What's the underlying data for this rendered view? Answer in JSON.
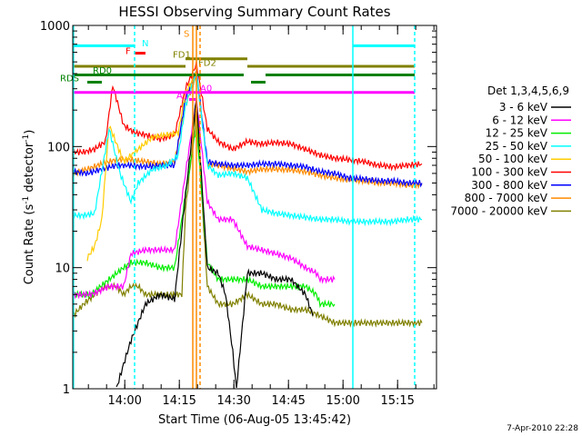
{
  "chart_data": {
    "type": "line",
    "title": "HESSI Observing Summary Count Rates",
    "xlabel": "Start Time (06-Aug-05 13:45:42)",
    "ylabel_main": "Count Rate (s",
    "ylabel_sup1": "-1",
    "ylabel_mid": " detector",
    "ylabel_sup2": "-1",
    "ylabel_end": ")",
    "y_scale": "log",
    "ylim": [
      1,
      1000
    ],
    "x_start_label": "13:45:42",
    "x_range_minutes": [
      0,
      100
    ],
    "y_ticks": [
      {
        "value": 1,
        "label": "1"
      },
      {
        "value": 10,
        "label": "10"
      },
      {
        "value": 100,
        "label": "100"
      },
      {
        "value": 1000,
        "label": "1000"
      }
    ],
    "x_ticks": [
      {
        "minute": 14.3,
        "label": "14:00"
      },
      {
        "minute": 29.3,
        "label": "14:15"
      },
      {
        "minute": 44.3,
        "label": "14:30"
      },
      {
        "minute": 59.3,
        "label": "14:45"
      },
      {
        "minute": 74.3,
        "label": "15:00"
      },
      {
        "minute": 89.3,
        "label": "15:15"
      }
    ],
    "legend_title": "Det 1,3,4,5,6,9",
    "legend_placement": "right",
    "series": [
      {
        "name": "3 - 6 keV",
        "color": "#000000",
        "points": [
          [
            12,
            1
          ],
          [
            14,
            1.6
          ],
          [
            16,
            2.5
          ],
          [
            20,
            5
          ],
          [
            24,
            6
          ],
          [
            28,
            5.5
          ],
          [
            31,
            40
          ],
          [
            34,
            250
          ],
          [
            37,
            10
          ],
          [
            40,
            9
          ],
          [
            42,
            6
          ],
          [
            44,
            2
          ],
          [
            45,
            1
          ],
          [
            48,
            9
          ],
          [
            52,
            9
          ],
          [
            56,
            8
          ],
          [
            60,
            8
          ],
          [
            64,
            6
          ],
          [
            66,
            4
          ]
        ]
      },
      {
        "name": "6 - 12 keV",
        "color": "#ff00ff",
        "points": [
          [
            0,
            6
          ],
          [
            5,
            6
          ],
          [
            10,
            7
          ],
          [
            14,
            7
          ],
          [
            16,
            13
          ],
          [
            20,
            14
          ],
          [
            24,
            14
          ],
          [
            28,
            14
          ],
          [
            31,
            60
          ],
          [
            34,
            250
          ],
          [
            37,
            35
          ],
          [
            40,
            25
          ],
          [
            44,
            25
          ],
          [
            48,
            15
          ],
          [
            52,
            14
          ],
          [
            56,
            13
          ],
          [
            60,
            12
          ],
          [
            64,
            10
          ],
          [
            67,
            9
          ],
          [
            68,
            8
          ],
          [
            72,
            8
          ]
        ]
      },
      {
        "name": "12 - 25 keV",
        "color": "#00ee00",
        "points": [
          [
            0,
            6
          ],
          [
            5,
            6
          ],
          [
            10,
            8
          ],
          [
            14,
            10
          ],
          [
            16,
            11
          ],
          [
            20,
            11
          ],
          [
            24,
            10
          ],
          [
            28,
            10
          ],
          [
            31,
            40
          ],
          [
            34,
            150
          ],
          [
            37,
            11
          ],
          [
            40,
            8
          ],
          [
            44,
            8
          ],
          [
            48,
            8
          ],
          [
            52,
            7
          ],
          [
            56,
            7
          ],
          [
            60,
            7
          ],
          [
            64,
            7
          ],
          [
            67,
            6
          ],
          [
            68,
            5
          ],
          [
            72,
            5
          ]
        ]
      },
      {
        "name": "25 - 50 keV",
        "color": "#00ffff",
        "points": [
          [
            0,
            27
          ],
          [
            3,
            27
          ],
          [
            6,
            28
          ],
          [
            10,
            140
          ],
          [
            13,
            60
          ],
          [
            16,
            35
          ],
          [
            18,
            50
          ],
          [
            22,
            65
          ],
          [
            26,
            70
          ],
          [
            29,
            85
          ],
          [
            31,
            220
          ],
          [
            34,
            400
          ],
          [
            37,
            70
          ],
          [
            40,
            58
          ],
          [
            44,
            60
          ],
          [
            48,
            55
          ],
          [
            52,
            30
          ],
          [
            56,
            28
          ],
          [
            60,
            27
          ],
          [
            64,
            26
          ],
          [
            68,
            25
          ],
          [
            72,
            25
          ],
          [
            76,
            24
          ],
          [
            80,
            24
          ],
          [
            84,
            24
          ],
          [
            88,
            24
          ],
          [
            92,
            25
          ],
          [
            96,
            25
          ]
        ]
      },
      {
        "name": "50 - 100 keV",
        "color": "#ffcc00",
        "points": [
          [
            4,
            12
          ],
          [
            6,
            15
          ],
          [
            8,
            25
          ],
          [
            10,
            150
          ],
          [
            14,
            75
          ],
          [
            18,
            95
          ],
          [
            22,
            120
          ],
          [
            26,
            125
          ],
          [
            29,
            130
          ],
          [
            31,
            280
          ],
          [
            34,
            400
          ]
        ]
      },
      {
        "name": "100 - 300 keV",
        "color": "#ff0000",
        "points": [
          [
            0,
            90
          ],
          [
            3,
            90
          ],
          [
            6,
            95
          ],
          [
            9,
            110
          ],
          [
            11,
            320
          ],
          [
            14,
            150
          ],
          [
            17,
            130
          ],
          [
            20,
            125
          ],
          [
            24,
            115
          ],
          [
            28,
            125
          ],
          [
            31,
            300
          ],
          [
            34,
            480
          ],
          [
            37,
            140
          ],
          [
            40,
            110
          ],
          [
            44,
            95
          ],
          [
            48,
            110
          ],
          [
            52,
            105
          ],
          [
            56,
            108
          ],
          [
            60,
            105
          ],
          [
            64,
            95
          ],
          [
            68,
            85
          ],
          [
            72,
            80
          ],
          [
            76,
            78
          ],
          [
            80,
            75
          ],
          [
            84,
            70
          ],
          [
            88,
            68
          ],
          [
            92,
            70
          ],
          [
            96,
            72
          ]
        ]
      },
      {
        "name": "300 - 800 keV",
        "color": "#0000ff",
        "points": [
          [
            0,
            62
          ],
          [
            4,
            60
          ],
          [
            8,
            65
          ],
          [
            12,
            70
          ],
          [
            16,
            70
          ],
          [
            20,
            68
          ],
          [
            24,
            70
          ],
          [
            28,
            70
          ],
          [
            31,
            250
          ],
          [
            34,
            420
          ],
          [
            37,
            75
          ],
          [
            40,
            72
          ],
          [
            44,
            70
          ],
          [
            48,
            70
          ],
          [
            52,
            72
          ],
          [
            56,
            72
          ],
          [
            60,
            70
          ],
          [
            64,
            68
          ],
          [
            68,
            62
          ],
          [
            72,
            60
          ],
          [
            76,
            55
          ],
          [
            80,
            54
          ],
          [
            84,
            52
          ],
          [
            88,
            52
          ],
          [
            92,
            50
          ],
          [
            96,
            50
          ]
        ]
      },
      {
        "name": "800 - 7000 keV",
        "color": "#ff8c00",
        "points": [
          [
            0,
            60
          ],
          [
            4,
            65
          ],
          [
            8,
            72
          ],
          [
            12,
            78
          ],
          [
            16,
            78
          ],
          [
            20,
            75
          ],
          [
            24,
            72
          ],
          [
            28,
            75
          ],
          [
            31,
            220
          ],
          [
            34,
            380
          ],
          [
            37,
            72
          ],
          [
            40,
            70
          ],
          [
            44,
            66
          ],
          [
            48,
            62
          ],
          [
            52,
            65
          ],
          [
            56,
            65
          ],
          [
            60,
            64
          ],
          [
            64,
            62
          ],
          [
            68,
            58
          ],
          [
            72,
            55
          ],
          [
            76,
            53
          ],
          [
            80,
            52
          ],
          [
            84,
            50
          ],
          [
            88,
            50
          ],
          [
            92,
            48
          ],
          [
            96,
            48
          ]
        ]
      },
      {
        "name": "7000 - 20000 keV",
        "color": "#808000",
        "points": [
          [
            0,
            4
          ],
          [
            3,
            5
          ],
          [
            6,
            6
          ],
          [
            9,
            7
          ],
          [
            12,
            7
          ],
          [
            14,
            6
          ],
          [
            16,
            7
          ],
          [
            18,
            7
          ],
          [
            20,
            6
          ],
          [
            22,
            6
          ],
          [
            24,
            6
          ],
          [
            26,
            6
          ],
          [
            28,
            6
          ],
          [
            30,
            6
          ],
          [
            31,
            30
          ],
          [
            34,
            200
          ],
          [
            37,
            7
          ],
          [
            40,
            5
          ],
          [
            44,
            5
          ],
          [
            48,
            6
          ],
          [
            52,
            5
          ],
          [
            56,
            5
          ],
          [
            60,
            4.5
          ],
          [
            64,
            4.5
          ],
          [
            68,
            4
          ],
          [
            72,
            3.5
          ],
          [
            76,
            3.5
          ],
          [
            80,
            3.5
          ],
          [
            84,
            3.5
          ],
          [
            88,
            3.5
          ],
          [
            92,
            3.5
          ],
          [
            96,
            3.5
          ]
        ]
      }
    ],
    "flags": [
      {
        "label": "N",
        "color": "#00ffff",
        "value": 680,
        "x0": 0,
        "x1": 17,
        "lx": 19,
        "ly": 675
      },
      {
        "label": "",
        "color": "#00ffff",
        "value": 680,
        "x0": 77,
        "x1": 94
      },
      {
        "label": "F",
        "color": "#ff0000",
        "value": 590,
        "x0": 17,
        "x1": 20,
        "lx": 14.5,
        "ly": 580
      },
      {
        "label": "S",
        "color": "#ff8c00",
        "value": 810,
        "x0": 31,
        "x1": 31,
        "lx": 30.5,
        "ly": 805
      },
      {
        "label": "FD1",
        "color": "#808000",
        "value": 530,
        "x0": 31,
        "x1": 48,
        "lx": 27.5,
        "ly": 540
      },
      {
        "label": "",
        "color": "#808000",
        "value": 460,
        "x0": 0,
        "x1": 31
      },
      {
        "label": "FD2",
        "color": "#808000",
        "value": 460,
        "x0": 48,
        "x1": 94,
        "lx": 34.5,
        "ly": 465
      },
      {
        "label": "RD0",
        "color": "#008000",
        "value": 390,
        "x0": 0,
        "x1": 47,
        "lx": 5.5,
        "ly": 400
      },
      {
        "label": "",
        "color": "#008000",
        "value": 390,
        "x0": 53,
        "x1": 94
      },
      {
        "label": "RDS",
        "color": "#008000",
        "value": 340,
        "x0": 4,
        "x1": 8,
        "lx": -3.5,
        "ly": 345
      },
      {
        "label": "",
        "color": "#008000",
        "value": 340,
        "x0": 49,
        "x1": 53
      },
      {
        "label": "A0",
        "color": "#ff00ff",
        "value": 280,
        "x0": 0,
        "x1": 94,
        "lx": 35,
        "ly": 285
      },
      {
        "label": "A1",
        "color": "#ff00ff",
        "value": 245,
        "x0": 32,
        "x1": 34,
        "lx": 28.5,
        "ly": 248
      }
    ],
    "vlines": [
      {
        "minute": 17,
        "color": "#00ffff",
        "dashed": true
      },
      {
        "minute": 0.2,
        "color": "#00ffff",
        "dashed": false
      },
      {
        "minute": 77,
        "color": "#00ffff",
        "dashed": false
      },
      {
        "minute": 94,
        "color": "#00ffff",
        "dashed": true
      },
      {
        "minute": 33,
        "color": "#ff8c00",
        "dashed": false
      },
      {
        "minute": 34,
        "color": "#ff8c00",
        "dashed": false
      },
      {
        "minute": 35,
        "color": "#ff8c00",
        "dashed": true
      }
    ]
  },
  "footer": {
    "date": "7-Apr-2010 22:28"
  }
}
